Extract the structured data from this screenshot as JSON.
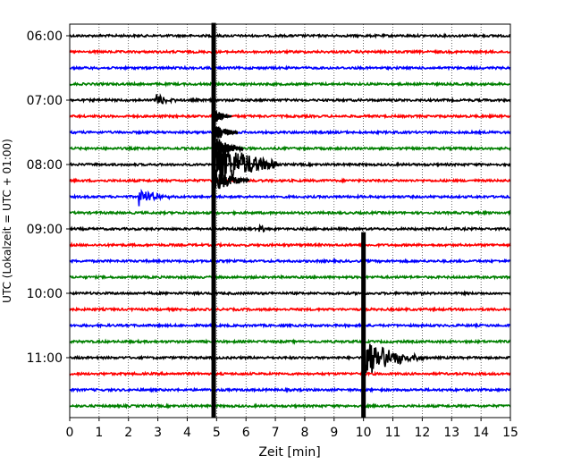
{
  "chart_data": {
    "type": "line",
    "title": "",
    "xlabel": "Zeit  [min]",
    "ylabel": "UTC (Lokalzeit = UTC + 01:00)",
    "xlim": [
      0,
      15
    ],
    "x_ticks": [
      "0",
      "1",
      "2",
      "3",
      "4",
      "5",
      "6",
      "7",
      "8",
      "9",
      "10",
      "11",
      "12",
      "13",
      "14",
      "15"
    ],
    "grid": "vertical dotted",
    "y_ticks": [
      {
        "label": "06:00",
        "trace_index": 0
      },
      {
        "label": "07:00",
        "trace_index": 4
      },
      {
        "label": "08:00",
        "trace_index": 8
      },
      {
        "label": "09:00",
        "trace_index": 12
      },
      {
        "label": "10:00",
        "trace_index": 16
      },
      {
        "label": "11:00",
        "trace_index": 20
      }
    ],
    "trace_interval_min": 15,
    "trace_colors": [
      "#000000",
      "#ff0000",
      "#0000ff",
      "#008000"
    ],
    "trace_count": 24,
    "series": [
      {
        "start": "06:00",
        "events": []
      },
      {
        "start": "06:15",
        "events": []
      },
      {
        "start": "06:30",
        "events": []
      },
      {
        "start": "06:45",
        "events": []
      },
      {
        "start": "07:00",
        "events": [
          {
            "t": 2.95,
            "amp": 0.45,
            "dur": 0.3
          }
        ]
      },
      {
        "start": "07:15",
        "events": []
      },
      {
        "start": "07:30",
        "events": []
      },
      {
        "start": "07:45",
        "events": []
      },
      {
        "start": "08:00",
        "events": []
      },
      {
        "start": "08:15",
        "events": []
      },
      {
        "start": "08:30",
        "events": [
          {
            "t": 2.4,
            "amp": 0.6,
            "dur": 0.4
          }
        ]
      },
      {
        "start": "08:45",
        "events": []
      },
      {
        "start": "09:00",
        "events": [
          {
            "t": 6.5,
            "amp": 0.25,
            "dur": 0.25
          }
        ]
      },
      {
        "start": "09:15",
        "events": []
      },
      {
        "start": "09:30",
        "events": []
      },
      {
        "start": "09:45",
        "events": []
      },
      {
        "start": "10:00",
        "events": []
      },
      {
        "start": "10:15",
        "events": []
      },
      {
        "start": "10:30",
        "events": []
      },
      {
        "start": "10:45",
        "events": []
      },
      {
        "start": "11:00",
        "events": [
          {
            "t": 10.1,
            "amp": 1.4,
            "dur": 0.8
          }
        ]
      },
      {
        "start": "11:15",
        "events": []
      },
      {
        "start": "11:30",
        "events": []
      },
      {
        "start": "11:45",
        "events": []
      }
    ],
    "spikes": [
      {
        "t": 4.9,
        "from_trace": 0,
        "to_trace": 23,
        "coda": [
          {
            "trace": 8,
            "amp": 1.8,
            "dur": 1.1
          },
          {
            "trace": 9,
            "amp": 0.8,
            "dur": 0.6
          },
          {
            "trace": 7,
            "amp": 0.8,
            "dur": 0.5
          },
          {
            "trace": 6,
            "amp": 0.6,
            "dur": 0.4
          },
          {
            "trace": 5,
            "amp": 0.5,
            "dur": 0.3
          }
        ]
      },
      {
        "t": 10.0,
        "from_trace": 13,
        "to_trace": 23,
        "coda": []
      }
    ]
  }
}
